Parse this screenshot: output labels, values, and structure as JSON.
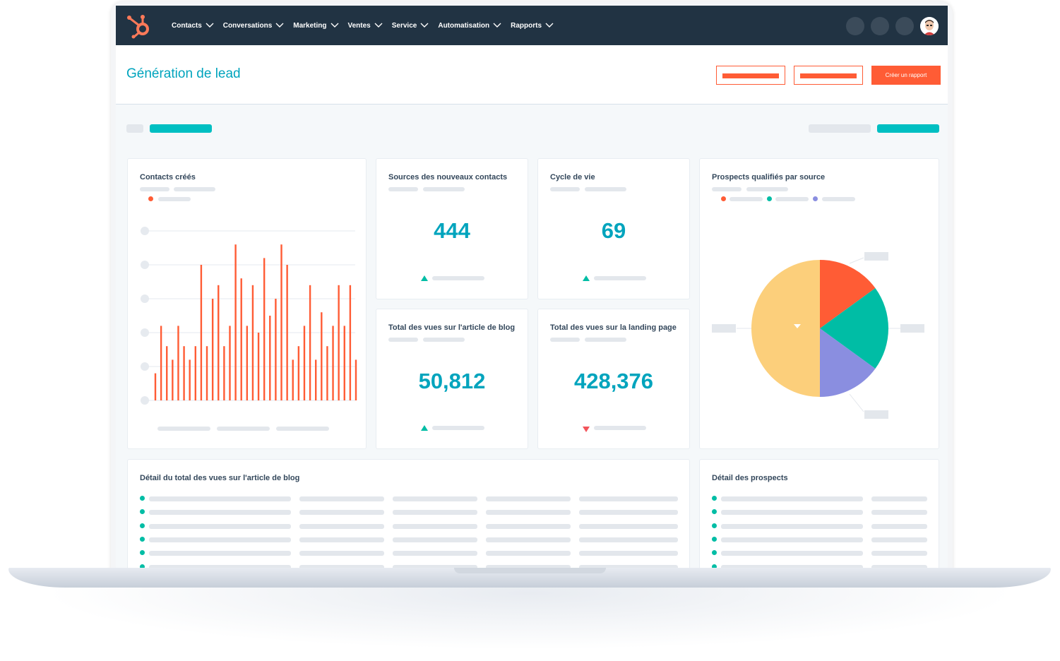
{
  "nav": {
    "items": [
      {
        "label": "Contacts"
      },
      {
        "label": "Conversations"
      },
      {
        "label": "Marketing"
      },
      {
        "label": "Ventes"
      },
      {
        "label": "Service"
      },
      {
        "label": "Automatisation"
      },
      {
        "label": "Rapports"
      }
    ]
  },
  "header": {
    "title": "Génération de lead",
    "create_report_label": "Créer un rapport"
  },
  "cards": {
    "contacts_created": {
      "title": "Contacts créés"
    },
    "new_contact_sources": {
      "title": "Sources des nouveaux contacts",
      "value": "444",
      "trend": "up"
    },
    "lifecycle": {
      "title": "Cycle de vie",
      "value": "69",
      "trend": "up"
    },
    "blog_views": {
      "title": "Total des vues sur l'article de blog",
      "value": "50,812",
      "trend": "up"
    },
    "landing_views": {
      "title": "Total des vues sur la landing page",
      "value": "428,376",
      "trend": "down"
    },
    "qualified_prospects": {
      "title": "Prospects qualifiés par source"
    },
    "blog_detail": {
      "title": "Détail du total des vues sur l'article de blog"
    },
    "prospect_detail": {
      "title": "Détail des prospects"
    }
  },
  "colors": {
    "brand_orange": "#ff5c35",
    "teal": "#00bda5",
    "kpi_blue": "#00a4bd",
    "nav_dark": "#213343",
    "pie_orange": "#ff5c35",
    "pie_teal": "#00bda5",
    "pie_purple": "#8a8ee0",
    "pie_yellow": "#fccf7b"
  },
  "icons": [
    "hubspot-logo-icon",
    "chevron-down-icon",
    "avatar-icon",
    "trend-up-icon",
    "trend-down-icon"
  ],
  "chart_data": [
    {
      "type": "bar",
      "title": "Contacts créés",
      "values": [
        8,
        22,
        16,
        12,
        22,
        16,
        12,
        16,
        40,
        16,
        30,
        34,
        16,
        22,
        46,
        36,
        22,
        34,
        20,
        42,
        25,
        30,
        46,
        40,
        12,
        16,
        22,
        34,
        12,
        26,
        16,
        22,
        34,
        22,
        34,
        12
      ],
      "ylim": [
        0,
        50
      ]
    },
    {
      "type": "pie",
      "title": "Prospects qualifiés par source",
      "slices": [
        {
          "value": 15,
          "color": "#ff5c35"
        },
        {
          "value": 20,
          "color": "#00bda5"
        },
        {
          "value": 15,
          "color": "#8a8ee0"
        },
        {
          "value": 50,
          "color": "#fccf7b"
        }
      ]
    }
  ]
}
